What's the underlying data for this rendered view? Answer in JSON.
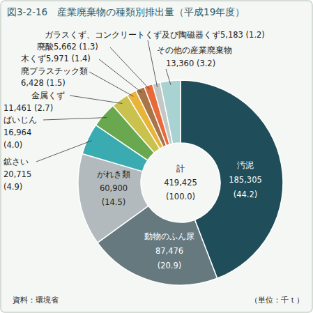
{
  "chart_data": {
    "type": "pie",
    "title": "図3-2-16　産業廃棄物の種類別排出量（平成19年度）",
    "categories": [
      "汚泥",
      "動物のふん尿",
      "がれき類",
      "鉱さい",
      "ばいじん",
      "金属くず",
      "廃プラスチック類",
      "木くず",
      "廃酸",
      "ガラスくず、コンクリートくず及び陶磁器くず",
      "その他の産業廃棄物"
    ],
    "values": [
      185305,
      87476,
      60900,
      20715,
      16964,
      11461,
      6428,
      5971,
      5662,
      5183,
      13360
    ],
    "value_labels": [
      "185,305",
      "87,476",
      "60,900",
      "20,715",
      "16,964",
      "11,461",
      "6,428",
      "5,971",
      "5,662",
      "5,183",
      "13,360"
    ],
    "percent_labels": [
      "(44.2)",
      "(20.9)",
      "(14.5)",
      "(4.9)",
      "(4.0)",
      "(2.7)",
      "(1.5)",
      "(1.4)",
      "(1.3)",
      "(1.2)",
      "(3.2)"
    ],
    "colors": [
      "#1f4e5a",
      "#66797f",
      "#b3babd",
      "#3aabb0",
      "#6aa84f",
      "#c9c24e",
      "#e8b53a",
      "#a8754a",
      "#e86a3a",
      "#c4c8c4",
      "#a9d3d3"
    ],
    "data_labels": true,
    "total": 419425,
    "total_name": "計",
    "total_label": "419,425",
    "total_percent_label": "(100.0)",
    "source": "資料：環境省",
    "unit": "（単位：千ｔ）"
  }
}
